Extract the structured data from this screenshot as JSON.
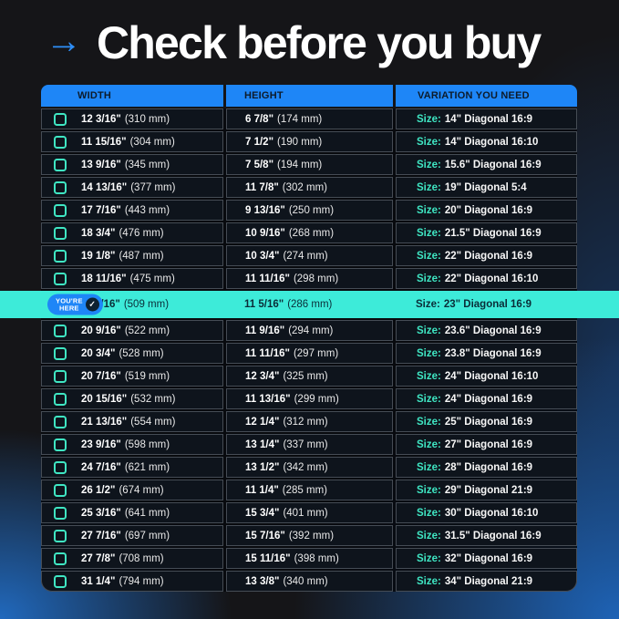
{
  "page": {
    "title": "Check before you buy",
    "arrow_icon": "→"
  },
  "colors": {
    "header_blue": "#1E86F7",
    "accent_teal": "#3FE6C3",
    "highlight_cyan": "#3DEBD9",
    "background_blue": "#1E63B6",
    "cell_background": "#0E141C"
  },
  "badge": {
    "line1": "YOU'RE",
    "line2": "HERE",
    "check_icon": "✓"
  },
  "chart_data": {
    "type": "table",
    "title": "Check before you buy",
    "columns": [
      "WIDTH",
      "HEIGHT",
      "VARIATION YOU NEED"
    ],
    "size_prefix": "Size:",
    "highlight_row_index": 8,
    "highlight_badge": "YOU'RE HERE",
    "rows": [
      {
        "width_in": "12 3/16\"",
        "width_mm": "(310 mm)",
        "height_in": "6 7/8\"",
        "height_mm": "(174 mm)",
        "size_value": "14\" Diagonal 16:9"
      },
      {
        "width_in": "11 15/16\"",
        "width_mm": "(304 mm)",
        "height_in": "7 1/2\"",
        "height_mm": "(190 mm)",
        "size_value": "14\" Diagonal 16:10"
      },
      {
        "width_in": "13 9/16\"",
        "width_mm": "(345 mm)",
        "height_in": "7 5/8\"",
        "height_mm": "(194 mm)",
        "size_value": "15.6\" Diagonal 16:9"
      },
      {
        "width_in": "14 13/16\"",
        "width_mm": "(377 mm)",
        "height_in": "11 7/8\"",
        "height_mm": "(302 mm)",
        "size_value": "19\" Diagonal 5:4"
      },
      {
        "width_in": "17 7/16\"",
        "width_mm": "(443 mm)",
        "height_in": "9 13/16\"",
        "height_mm": "(250 mm)",
        "size_value": "20\" Diagonal 16:9"
      },
      {
        "width_in": "18 3/4\"",
        "width_mm": "(476 mm)",
        "height_in": "10 9/16\"",
        "height_mm": "(268 mm)",
        "size_value": "21.5\" Diagonal 16:9"
      },
      {
        "width_in": "19 1/8\"",
        "width_mm": "(487 mm)",
        "height_in": "10 3/4\"",
        "height_mm": "(274 mm)",
        "size_value": "22\" Diagonal 16:9"
      },
      {
        "width_in": "18 11/16\"",
        "width_mm": "(475 mm)",
        "height_in": "11 11/16\"",
        "height_mm": "(298 mm)",
        "size_value": "22\" Diagonal 16:10"
      },
      {
        "width_in": "20 1/16\"",
        "width_mm": "(509 mm)",
        "height_in": "11 5/16\"",
        "height_mm": "(286 mm)",
        "size_value": "23\" Diagonal 16:9"
      },
      {
        "width_in": "20 9/16\"",
        "width_mm": "(522 mm)",
        "height_in": "11 9/16\"",
        "height_mm": "(294 mm)",
        "size_value": "23.6\" Diagonal 16:9"
      },
      {
        "width_in": "20 3/4\"",
        "width_mm": "(528 mm)",
        "height_in": "11 11/16\"",
        "height_mm": "(297 mm)",
        "size_value": "23.8\" Diagonal 16:9"
      },
      {
        "width_in": "20 7/16\"",
        "width_mm": "(519 mm)",
        "height_in": "12 3/4\"",
        "height_mm": "(325 mm)",
        "size_value": "24\" Diagonal 16:10"
      },
      {
        "width_in": "20 15/16\"",
        "width_mm": "(532 mm)",
        "height_in": "11 13/16\"",
        "height_mm": "(299 mm)",
        "size_value": "24\" Diagonal 16:9"
      },
      {
        "width_in": "21 13/16\"",
        "width_mm": "(554 mm)",
        "height_in": "12 1/4\"",
        "height_mm": "(312 mm)",
        "size_value": "25\" Diagonal 16:9"
      },
      {
        "width_in": "23 9/16\"",
        "width_mm": "(598 mm)",
        "height_in": "13 1/4\"",
        "height_mm": "(337 mm)",
        "size_value": "27\" Diagonal 16:9"
      },
      {
        "width_in": "24 7/16\"",
        "width_mm": "(621 mm)",
        "height_in": "13 1/2\"",
        "height_mm": "(342 mm)",
        "size_value": "28\" Diagonal 16:9"
      },
      {
        "width_in": "26 1/2\"",
        "width_mm": "(674 mm)",
        "height_in": "11 1/4\"",
        "height_mm": "(285 mm)",
        "size_value": "29\" Diagonal 21:9"
      },
      {
        "width_in": "25 3/16\"",
        "width_mm": "(641 mm)",
        "height_in": "15 3/4\"",
        "height_mm": "(401 mm)",
        "size_value": "30\" Diagonal 16:10"
      },
      {
        "width_in": "27 7/16\"",
        "width_mm": "(697 mm)",
        "height_in": "15 7/16\"",
        "height_mm": "(392 mm)",
        "size_value": "31.5\" Diagonal 16:9"
      },
      {
        "width_in": "27 7/8\"",
        "width_mm": "(708 mm)",
        "height_in": "15 11/16\"",
        "height_mm": "(398 mm)",
        "size_value": "32\" Diagonal 16:9"
      },
      {
        "width_in": "31 1/4\"",
        "width_mm": "(794 mm)",
        "height_in": "13 3/8\"",
        "height_mm": "(340 mm)",
        "size_value": "34\" Diagonal 21:9"
      }
    ]
  }
}
